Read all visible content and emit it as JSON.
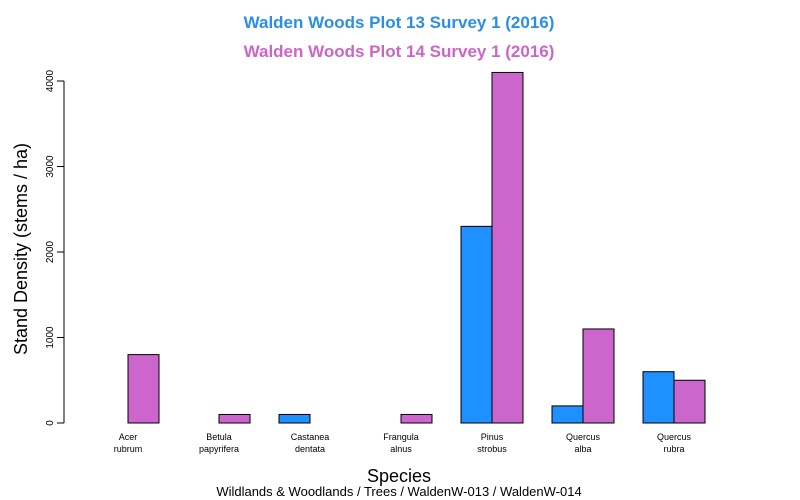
{
  "chart_data": {
    "type": "bar",
    "titles": [
      {
        "text": "Walden Woods  Plot 13 Survey 1 (2016)",
        "color": "#2B8FE3"
      },
      {
        "text": "Walden Woods  Plot 14 Survey 1 (2016)",
        "color": "#CC66C6"
      }
    ],
    "categories": [
      [
        "Acer",
        "rubrum"
      ],
      [
        "Betula",
        "papyrifera"
      ],
      [
        "Castanea",
        "dentata"
      ],
      [
        "Frangula",
        "alnus"
      ],
      [
        "Pinus",
        "strobus"
      ],
      [
        "Quercus",
        "alba"
      ],
      [
        "Quercus",
        "rubra"
      ]
    ],
    "series": [
      {
        "color": "#1E90FF",
        "values": [
          0,
          0,
          100,
          0,
          2300,
          200,
          600
        ]
      },
      {
        "color": "#CC66CC",
        "values": [
          800,
          100,
          0,
          100,
          4100,
          1100,
          500
        ]
      }
    ],
    "xlabel": "Species",
    "ylabel": "Stand Density (stems / ha)",
    "ylim": [
      0,
      4100
    ],
    "yticks": [
      0,
      1000,
      2000,
      3000,
      4000
    ],
    "grid": false,
    "caption": "Wildlands & Woodlands / Trees / WaldenW-013 / WaldenW-014"
  }
}
